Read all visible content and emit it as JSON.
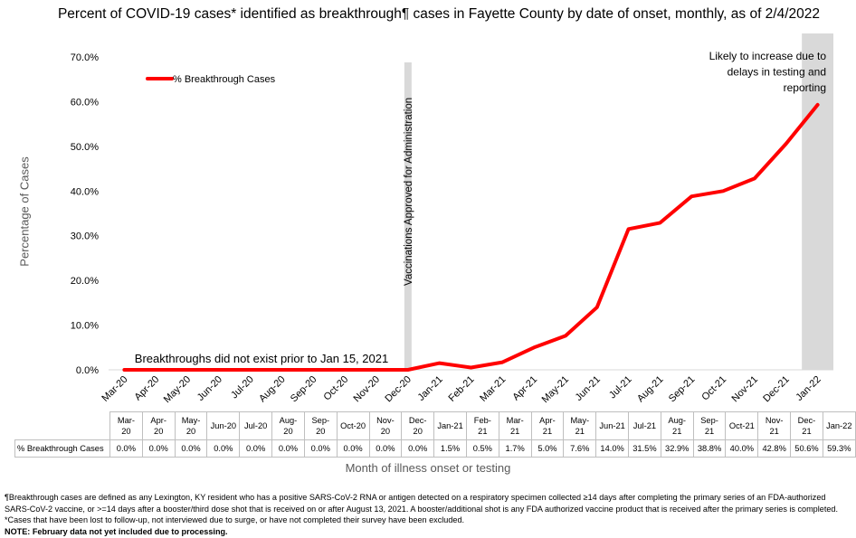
{
  "title": "Percent of COVID-19 cases* identified as breakthrough¶ cases in Fayette County by date of onset, monthly, as of 2/4/2022",
  "colors": {
    "series": "#ff0000",
    "shade": "#d9d9d9",
    "axis_text": "#595959"
  },
  "chart_data": {
    "type": "line",
    "title": "Percent of COVID-19 cases* identified as breakthrough¶ cases in Fayette County by date of onset, monthly, as of 2/4/2022",
    "xlabel": "Month of illness onset or testing",
    "ylabel": "Percentage of Cases",
    "ylim": [
      0,
      70
    ],
    "y_ticks": [
      "0.0%",
      "10.0%",
      "20.0%",
      "30.0%",
      "40.0%",
      "50.0%",
      "60.0%",
      "70.0%"
    ],
    "categories": [
      "Mar-20",
      "Apr-20",
      "May-20",
      "Jun-20",
      "Jul-20",
      "Aug-20",
      "Sep-20",
      "Oct-20",
      "Nov-20",
      "Dec-20",
      "Jan-21",
      "Feb-21",
      "Mar-21",
      "Apr-21",
      "May-21",
      "Jun-21",
      "Jul-21",
      "Aug-21",
      "Sep-21",
      "Oct-21",
      "Nov-21",
      "Dec-21",
      "Jan-22"
    ],
    "table_headers": [
      "Mar-\n20",
      "Apr-\n20",
      "May-\n20",
      "Jun-20",
      "Jul-20",
      "Aug-\n20",
      "Sep-\n20",
      "Oct-20",
      "Nov-\n20",
      "Dec-\n20",
      "Jan-21",
      "Feb-\n21",
      "Mar-\n21",
      "Apr-\n21",
      "May-\n21",
      "Jun-21",
      "Jul-21",
      "Aug-\n21",
      "Sep-\n21",
      "Oct-21",
      "Nov-\n21",
      "Dec-\n21",
      "Jan-22"
    ],
    "series": [
      {
        "name": "% Breakthrough Cases",
        "values": [
          0,
          0,
          0,
          0,
          0,
          0,
          0,
          0,
          0,
          0,
          1.5,
          0.5,
          1.7,
          5.0,
          7.6,
          14.0,
          31.5,
          32.9,
          38.8,
          40.0,
          42.8,
          50.6,
          59.3
        ],
        "labels": [
          "0.0%",
          "0.0%",
          "0.0%",
          "0.0%",
          "0.0%",
          "0.0%",
          "0.0%",
          "0.0%",
          "0.0%",
          "0.0%",
          "1.5%",
          "0.5%",
          "1.7%",
          "5.0%",
          "7.6%",
          "14.0%",
          "31.5%",
          "32.9%",
          "38.8%",
          "40.0%",
          "42.8%",
          "50.6%",
          "59.3%"
        ]
      }
    ],
    "legend": "top-left",
    "grid": false,
    "annotations": {
      "vaccine_line": "Vaccinations Approved for Administration",
      "pre_text": "Breakthroughs did not exist prior to Jan 15, 2021",
      "recent_text": [
        "Likely to increase due to",
        "delays in testing and",
        "reporting"
      ]
    }
  },
  "footnote": {
    "text": "¶Breakthrough cases are defined as any Lexington, KY resident who has a positive SARS-CoV-2 RNA or antigen detected on a respiratory specimen collected ≥14 days after completing the primary series of an FDA-authorized SARS-CoV-2 vaccine, or >=14 days after a booster/third dose shot that is received on or after August 13, 2021.  A booster/additional shot is any FDA authorized vaccine product that is received after the primary series is completed. *Cases that have been lost to follow-up, not interviewed due to surge, or have not completed their survey have been excluded.",
    "note": "NOTE: February data not yet included due to processing."
  }
}
